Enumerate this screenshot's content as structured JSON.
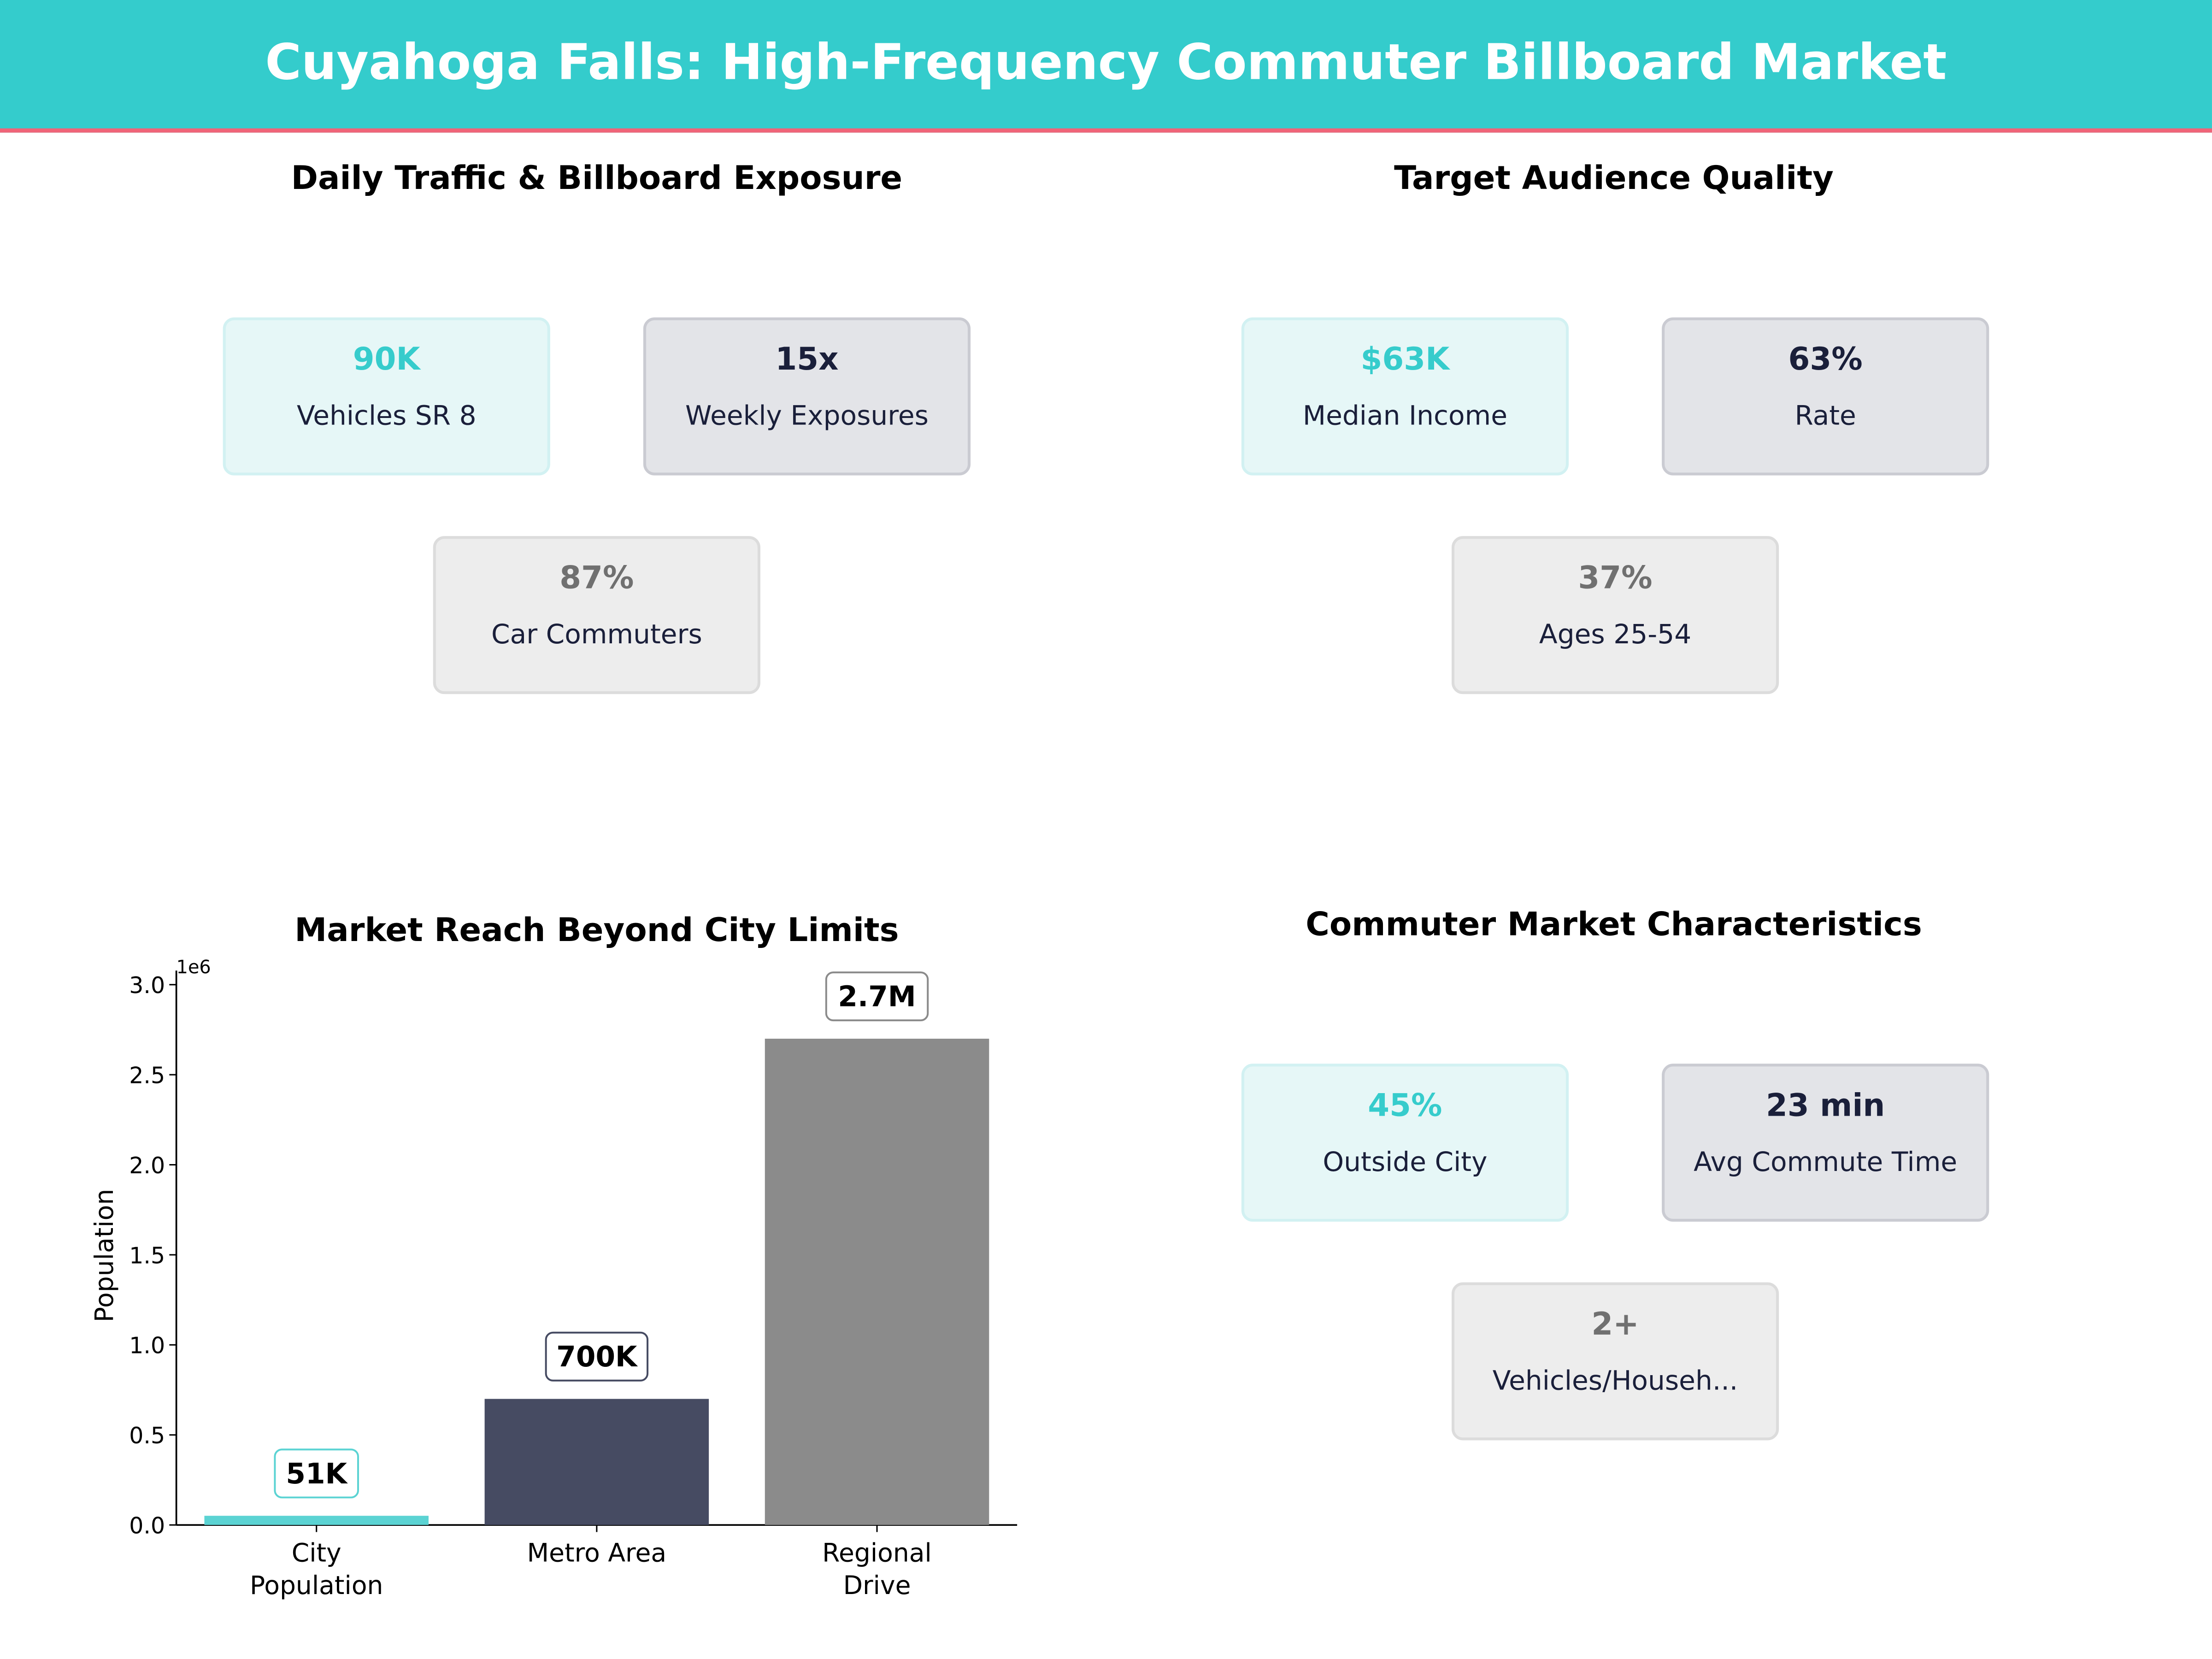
{
  "header": {
    "title": "Cuyahoga Falls: High-Frequency Commuter Billboard Market"
  },
  "colors": {
    "teal": "#34cccc",
    "accent_line": "#f06478",
    "navy": "#464b62",
    "gray": "#8b8b8b"
  },
  "panels": {
    "traffic": {
      "title": "Daily Traffic & Billboard Exposure",
      "cards": [
        {
          "value": "90K",
          "label": "Vehicles SR 8"
        },
        {
          "value": "15x",
          "label": "Weekly Exposures"
        },
        {
          "value": "87%",
          "label": "Car Commuters"
        }
      ]
    },
    "audience": {
      "title": "Target Audience Quality",
      "cards": [
        {
          "value": "$63K",
          "label": "Median Income"
        },
        {
          "value": "63%",
          "label": "Rate"
        },
        {
          "value": "37%",
          "label": "Ages 25-54"
        }
      ]
    },
    "commuter": {
      "title": "Commuter Market Characteristics",
      "cards": [
        {
          "value": "45%",
          "label": "Outside City"
        },
        {
          "value": "23 min",
          "label": "Avg Commute Time"
        },
        {
          "value": "2+",
          "label": "Vehicles/Househ..."
        }
      ]
    }
  },
  "chart_data": {
    "type": "bar",
    "title": "Market Reach Beyond City Limits",
    "ylabel": "Population",
    "xlabel": "",
    "offset_label": "1e6",
    "categories": [
      "City\nPopulation",
      "Metro Area",
      "Regional\nDrive"
    ],
    "values": [
      51000,
      700000,
      2700000
    ],
    "data_labels": [
      "51K",
      "700K",
      "2.7M"
    ],
    "bar_colors": [
      "#5bd3d3",
      "#464b62",
      "#8b8b8b"
    ],
    "ylim": [
      0,
      3000000
    ],
    "yticks": [
      0,
      500000,
      1000000,
      1500000,
      2000000,
      2500000,
      3000000
    ],
    "ytick_labels": [
      "0.0",
      "0.5",
      "1.0",
      "1.5",
      "2.0",
      "2.5",
      "3.0"
    ],
    "grid": false
  }
}
